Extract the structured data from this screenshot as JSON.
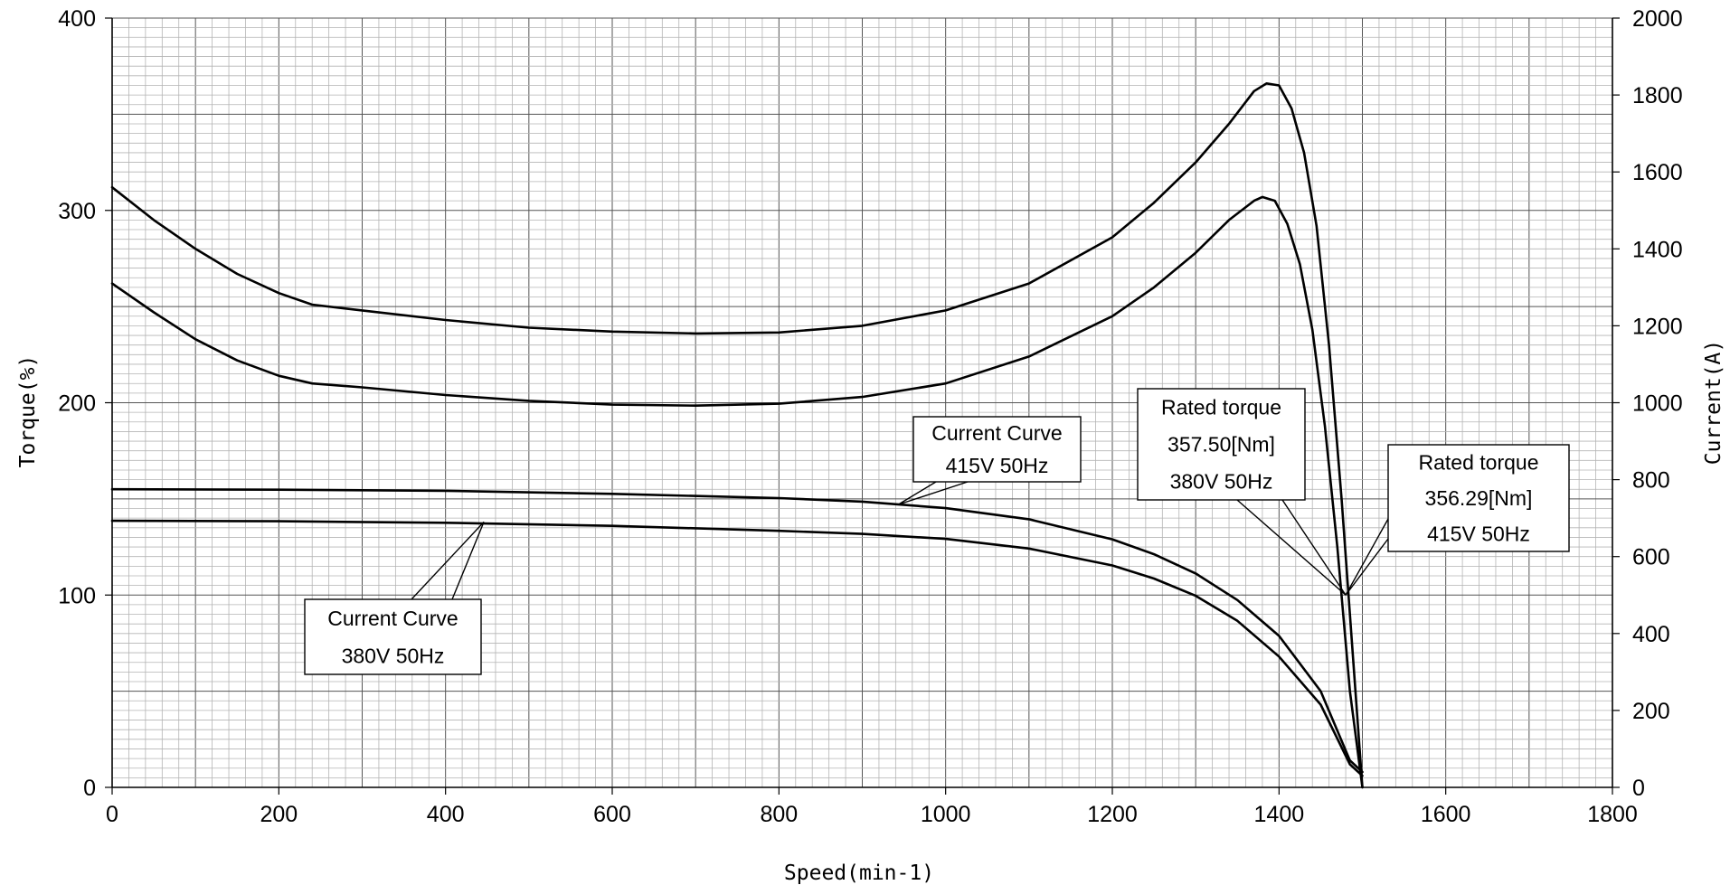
{
  "chart_data": {
    "type": "line",
    "title": "",
    "xlabel": "Speed(min-1)",
    "ylabel": "Torque(%)",
    "y2label": "Current(A)",
    "xlim": [
      0,
      1800
    ],
    "ylim": [
      0,
      400
    ],
    "y2lim": [
      0,
      2000
    ],
    "grid": true,
    "legend": "none",
    "x_ticks": [
      "0",
      "200",
      "400",
      "600",
      "800",
      "1000",
      "1200",
      "1400",
      "1600",
      "1800"
    ],
    "y_ticks": [
      "0",
      "100",
      "200",
      "300",
      "400"
    ],
    "y2_ticks": [
      "0",
      "200",
      "400",
      "600",
      "800",
      "1000",
      "1200",
      "1400",
      "1600",
      "1800",
      "2000"
    ],
    "series": [
      {
        "axis": "left",
        "values": [
          [
            0,
            312
          ],
          [
            50,
            295
          ],
          [
            100,
            280
          ],
          [
            150,
            267
          ],
          [
            200,
            257
          ],
          [
            240,
            251
          ],
          [
            300,
            248
          ],
          [
            400,
            243
          ],
          [
            500,
            239
          ],
          [
            600,
            237
          ],
          [
            700,
            236
          ],
          [
            800,
            236.5
          ],
          [
            900,
            240
          ],
          [
            1000,
            248
          ],
          [
            1100,
            262
          ],
          [
            1200,
            286
          ],
          [
            1250,
            304
          ],
          [
            1300,
            325
          ],
          [
            1340,
            345
          ],
          [
            1370,
            362
          ],
          [
            1385,
            366
          ],
          [
            1400,
            365
          ],
          [
            1415,
            353
          ],
          [
            1430,
            330
          ],
          [
            1445,
            292
          ],
          [
            1460,
            230
          ],
          [
            1475,
            150
          ],
          [
            1490,
            60
          ],
          [
            1500,
            0
          ]
        ]
      },
      {
        "axis": "left",
        "values": [
          [
            0,
            262
          ],
          [
            50,
            247
          ],
          [
            100,
            233
          ],
          [
            150,
            222
          ],
          [
            200,
            214
          ],
          [
            240,
            210
          ],
          [
            300,
            208
          ],
          [
            400,
            204
          ],
          [
            500,
            201
          ],
          [
            600,
            199
          ],
          [
            700,
            198.5
          ],
          [
            800,
            199.5
          ],
          [
            900,
            203
          ],
          [
            1000,
            210
          ],
          [
            1100,
            224
          ],
          [
            1200,
            245
          ],
          [
            1250,
            260
          ],
          [
            1300,
            278
          ],
          [
            1340,
            295
          ],
          [
            1370,
            305
          ],
          [
            1380,
            307
          ],
          [
            1395,
            305
          ],
          [
            1410,
            293
          ],
          [
            1425,
            272
          ],
          [
            1440,
            238
          ],
          [
            1455,
            188
          ],
          [
            1470,
            125
          ],
          [
            1485,
            50
          ],
          [
            1500,
            0
          ]
        ]
      },
      {
        "axis": "right",
        "values": [
          [
            0,
            775
          ],
          [
            200,
            774
          ],
          [
            400,
            771
          ],
          [
            600,
            763
          ],
          [
            800,
            752
          ],
          [
            900,
            743
          ],
          [
            1000,
            726
          ],
          [
            1100,
            697
          ],
          [
            1200,
            645
          ],
          [
            1250,
            606
          ],
          [
            1300,
            556
          ],
          [
            1350,
            487
          ],
          [
            1400,
            394
          ],
          [
            1450,
            250
          ],
          [
            1485,
            70
          ],
          [
            1500,
            40
          ]
        ]
      },
      {
        "axis": "right",
        "values": [
          [
            0,
            693
          ],
          [
            200,
            692
          ],
          [
            400,
            688
          ],
          [
            600,
            680
          ],
          [
            800,
            667
          ],
          [
            900,
            659
          ],
          [
            1000,
            646
          ],
          [
            1100,
            621
          ],
          [
            1200,
            577
          ],
          [
            1250,
            543
          ],
          [
            1300,
            498
          ],
          [
            1350,
            433
          ],
          [
            1400,
            340
          ],
          [
            1450,
            215
          ],
          [
            1485,
            60
          ],
          [
            1500,
            30
          ]
        ]
      }
    ],
    "annotations": [
      {
        "lines": [
          "Current Curve",
          "415V 50Hz"
        ],
        "point": [
          943,
          147
        ]
      },
      {
        "lines": [
          "Current Curve",
          "380V 50Hz"
        ],
        "point": [
          446,
          138
        ]
      },
      {
        "lines": [
          "Rated torque",
          "357.50[Nm]",
          "380V 50Hz"
        ],
        "point": [
          1480,
          100
        ]
      },
      {
        "lines": [
          "Rated torque",
          "356.29[Nm]",
          "415V 50Hz"
        ],
        "point": [
          1480,
          100
        ]
      }
    ]
  }
}
